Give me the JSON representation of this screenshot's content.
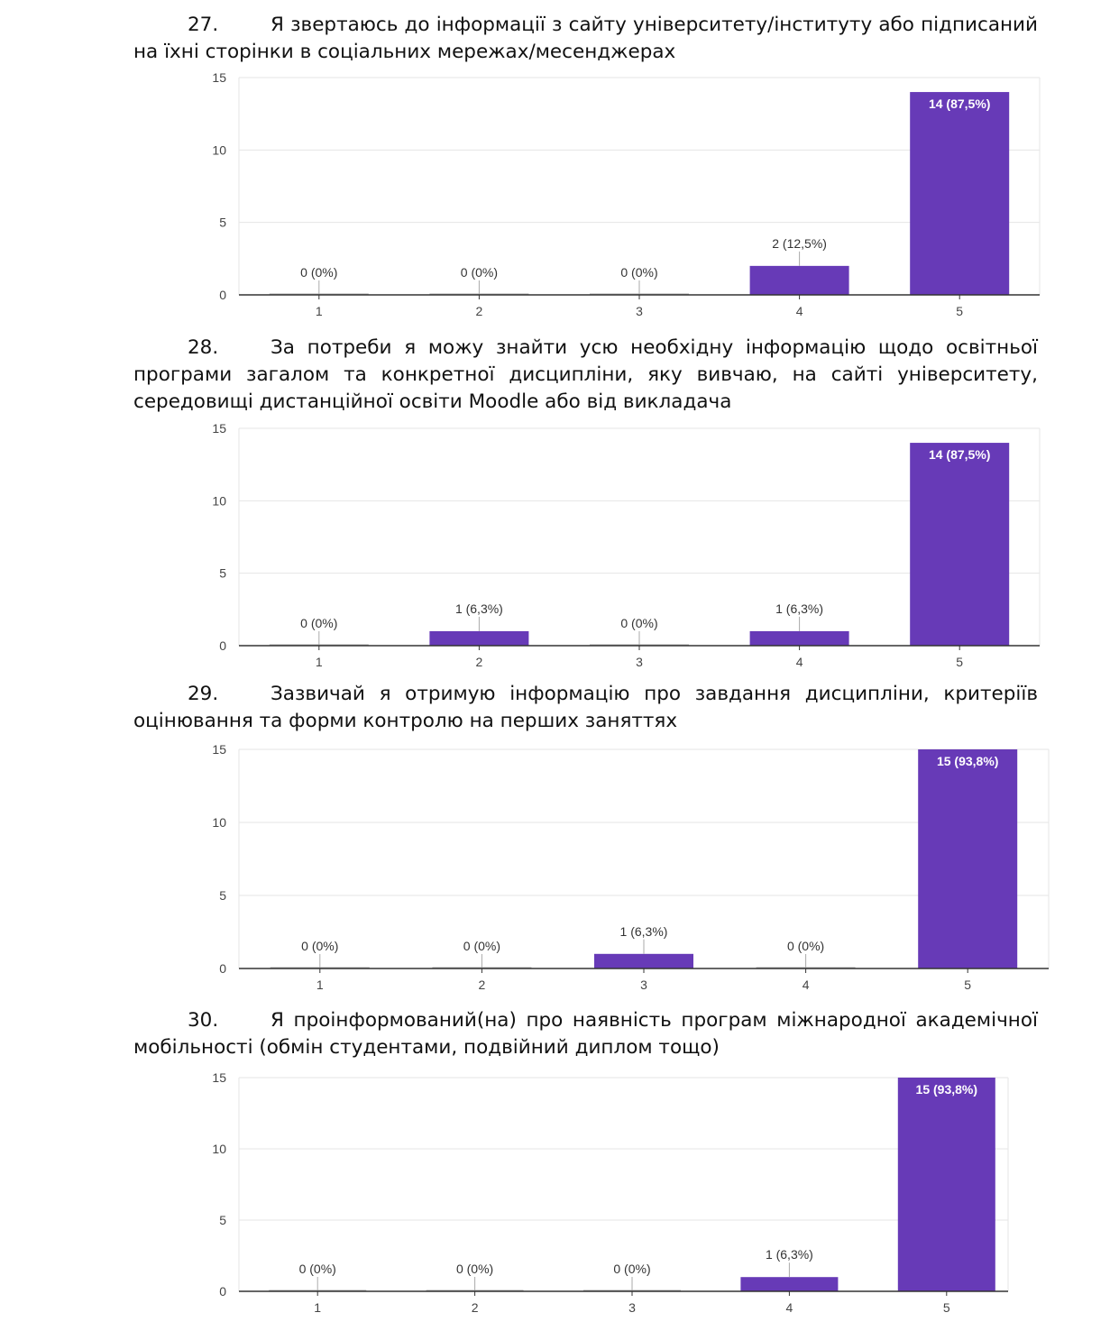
{
  "palette": {
    "bar": "#673ab7",
    "grid": "#e6e6e6",
    "axis": "#333333",
    "label": "#444444",
    "zero_line": "#aaaaaa"
  },
  "questions": [
    {
      "number": "27.",
      "text": "Я звертаюсь до інформації з сайту університету/інституту або підписаний на їхні сторінки в соціальних мережах/месенджерах"
    },
    {
      "number": "28.",
      "text": "За потреби я можу знайти усю необхідну інформацію щодо освітньої програми загалом та конкретної дисципліни, яку вивчаю, на сайті університету, середовищі дистанційної освіти Moodle або від викладача"
    },
    {
      "number": "29.",
      "text": "Зазвичай я отримую інформацію про завдання дисципліни, критеріїв оцінювання та форми контролю на перших заняттях"
    },
    {
      "number": "30.",
      "text": "Я проінформований(на) про наявність програм міжнародної академічної мобільності (обмін студентами, подвійний диплом тощо)"
    }
  ],
  "chart_data": [
    {
      "type": "bar",
      "title": "",
      "xlabel": "",
      "ylabel": "",
      "ylim": [
        0,
        15
      ],
      "yticks": [
        "0",
        "5",
        "10",
        "15"
      ],
      "grid": true,
      "categories": [
        "1",
        "2",
        "3",
        "4",
        "5"
      ],
      "values": [
        0,
        0,
        0,
        2,
        14
      ],
      "data_labels": [
        "0 (0%)",
        "0 (0%)",
        "0 (0%)",
        "2 (12,5%)",
        "14 (87,5%)"
      ]
    },
    {
      "type": "bar",
      "title": "",
      "xlabel": "",
      "ylabel": "",
      "ylim": [
        0,
        15
      ],
      "yticks": [
        "0",
        "5",
        "10",
        "15"
      ],
      "grid": true,
      "categories": [
        "1",
        "2",
        "3",
        "4",
        "5"
      ],
      "values": [
        0,
        1,
        0,
        1,
        14
      ],
      "data_labels": [
        "0 (0%)",
        "1 (6,3%)",
        "0 (0%)",
        "1 (6,3%)",
        "14 (87,5%)"
      ]
    },
    {
      "type": "bar",
      "title": "",
      "xlabel": "",
      "ylabel": "",
      "ylim": [
        0,
        15
      ],
      "yticks": [
        "0",
        "5",
        "10",
        "15"
      ],
      "grid": true,
      "categories": [
        "1",
        "2",
        "3",
        "4",
        "5"
      ],
      "values": [
        0,
        0,
        1,
        0,
        15
      ],
      "data_labels": [
        "0 (0%)",
        "0 (0%)",
        "1 (6,3%)",
        "0 (0%)",
        "15 (93,8%)"
      ]
    },
    {
      "type": "bar",
      "title": "",
      "xlabel": "",
      "ylabel": "",
      "ylim": [
        0,
        15
      ],
      "yticks": [
        "0",
        "5",
        "10",
        "15"
      ],
      "grid": true,
      "categories": [
        "1",
        "2",
        "3",
        "4",
        "5"
      ],
      "values": [
        0,
        0,
        0,
        1,
        15
      ],
      "data_labels": [
        "0 (0%)",
        "0 (0%)",
        "0 (0%)",
        "1 (6,3%)",
        "15 (93,8%)"
      ]
    }
  ]
}
